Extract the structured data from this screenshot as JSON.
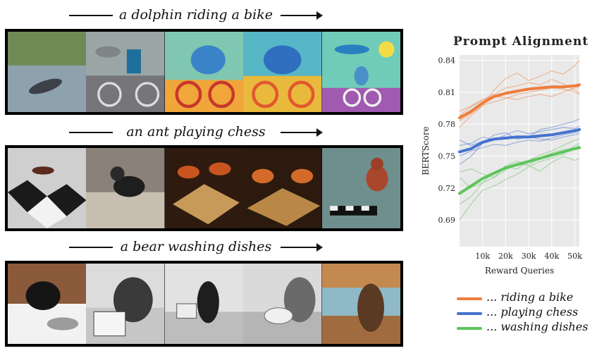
{
  "rows": [
    {
      "prompt": "a dolphin riding a bike"
    },
    {
      "prompt": "an ant playing chess"
    },
    {
      "prompt": "a bear washing dishes"
    }
  ],
  "chart_data": {
    "type": "line",
    "title": "Prompt Alignment",
    "xlabel": "Reward Queries",
    "ylabel": "BERTScore",
    "xlim": [
      0,
      52000
    ],
    "ylim": [
      0.665,
      0.845
    ],
    "xticks": [
      10000,
      20000,
      30000,
      40000,
      50000
    ],
    "xtick_labels": [
      "10k",
      "20k",
      "30k",
      "40k",
      "50k"
    ],
    "yticks": [
      0.69,
      0.72,
      0.75,
      0.78,
      0.81,
      0.84
    ],
    "ytick_labels": [
      "0.69",
      "0.72",
      "0.75",
      "0.78",
      "0.81",
      "0.84"
    ],
    "grid": true,
    "legend_position": "bottom",
    "series": [
      {
        "name": "... riding a bike",
        "color": "#ee7d3c",
        "x": [
          0,
          5000,
          10000,
          15000,
          20000,
          25000,
          30000,
          35000,
          40000,
          45000,
          50000,
          52000
        ],
        "values": [
          0.786,
          0.792,
          0.8,
          0.806,
          0.809,
          0.811,
          0.813,
          0.814,
          0.815,
          0.815,
          0.816,
          0.817
        ],
        "runs": [
          [
            0.777,
            0.788,
            0.797,
            0.812,
            0.823,
            0.828,
            0.821,
            0.825,
            0.83,
            0.827,
            0.835,
            0.84
          ],
          [
            0.788,
            0.796,
            0.803,
            0.808,
            0.814,
            0.816,
            0.819,
            0.817,
            0.822,
            0.818,
            0.812,
            0.809
          ],
          [
            0.783,
            0.79,
            0.798,
            0.801,
            0.804,
            0.808,
            0.81,
            0.812,
            0.814,
            0.813,
            0.81,
            0.808
          ],
          [
            0.792,
            0.797,
            0.803,
            0.806,
            0.805,
            0.803,
            0.806,
            0.808,
            0.806,
            0.81,
            0.814,
            0.815
          ]
        ]
      },
      {
        "name": "... playing chess",
        "color": "#4472d0",
        "x": [
          0,
          5000,
          10000,
          15000,
          20000,
          25000,
          30000,
          35000,
          40000,
          45000,
          50000,
          52000
        ],
        "values": [
          0.754,
          0.757,
          0.763,
          0.766,
          0.767,
          0.768,
          0.768,
          0.769,
          0.77,
          0.772,
          0.774,
          0.775
        ],
        "runs": [
          [
            0.742,
            0.75,
            0.762,
            0.77,
            0.772,
            0.766,
            0.768,
            0.775,
            0.777,
            0.78,
            0.783,
            0.785
          ],
          [
            0.76,
            0.762,
            0.768,
            0.765,
            0.77,
            0.774,
            0.771,
            0.773,
            0.775,
            0.777,
            0.776,
            0.778
          ],
          [
            0.75,
            0.755,
            0.758,
            0.761,
            0.76,
            0.763,
            0.765,
            0.764,
            0.767,
            0.77,
            0.772,
            0.773
          ],
          [
            0.765,
            0.76,
            0.764,
            0.767,
            0.766,
            0.769,
            0.768,
            0.766,
            0.765,
            0.768,
            0.77,
            0.771
          ]
        ]
      },
      {
        "name": "... washing dishes",
        "color": "#5ec45b",
        "x": [
          0,
          5000,
          10000,
          15000,
          20000,
          25000,
          30000,
          35000,
          40000,
          45000,
          50000,
          52000
        ],
        "values": [
          0.715,
          0.722,
          0.729,
          0.734,
          0.739,
          0.742,
          0.745,
          0.748,
          0.751,
          0.754,
          0.757,
          0.758
        ],
        "runs": [
          [
            0.69,
            0.705,
            0.718,
            0.722,
            0.728,
            0.733,
            0.74,
            0.745,
            0.748,
            0.752,
            0.76,
            0.762
          ],
          [
            0.73,
            0.72,
            0.725,
            0.73,
            0.741,
            0.745,
            0.742,
            0.748,
            0.753,
            0.756,
            0.758,
            0.76
          ],
          [
            0.705,
            0.712,
            0.725,
            0.735,
            0.74,
            0.738,
            0.746,
            0.751,
            0.755,
            0.76,
            0.765,
            0.766
          ],
          [
            0.735,
            0.738,
            0.733,
            0.73,
            0.737,
            0.743,
            0.741,
            0.736,
            0.744,
            0.75,
            0.746,
            0.748
          ]
        ]
      }
    ]
  }
}
